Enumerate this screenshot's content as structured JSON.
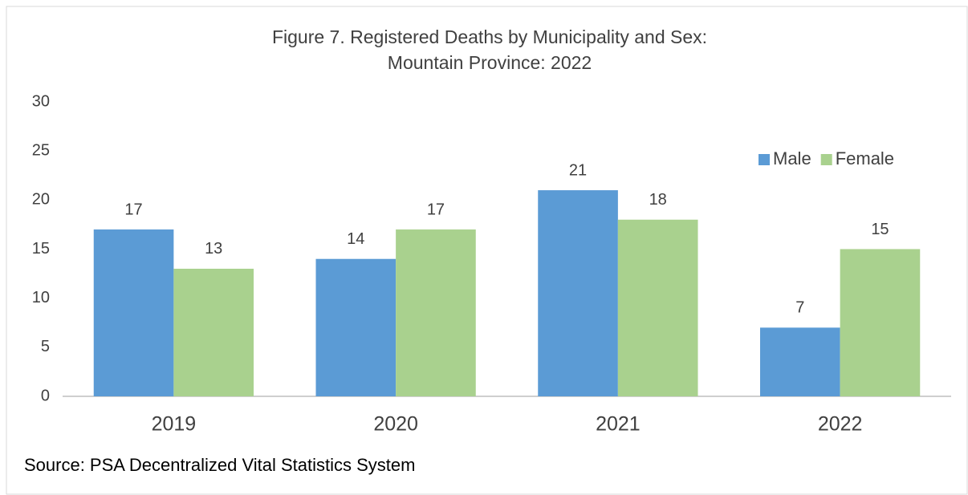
{
  "chart_data": {
    "type": "bar",
    "title": "Figure 7. Registered Deaths by Municipality and Sex:",
    "subtitle": "Mountain Province: 2022",
    "categories": [
      "2019",
      "2020",
      "2021",
      "2022"
    ],
    "series": [
      {
        "name": "Male",
        "color": "#5b9bd5",
        "values": [
          17,
          14,
          21,
          7
        ]
      },
      {
        "name": "Female",
        "color": "#a9d18e",
        "values": [
          13,
          17,
          18,
          15
        ]
      }
    ],
    "ylim": [
      0,
      30
    ],
    "yticks": [
      0,
      5,
      10,
      15,
      20,
      25,
      30
    ],
    "grid": false,
    "legend": "upper right",
    "source": "Source: PSA Decentralized Vital Statistics System"
  }
}
